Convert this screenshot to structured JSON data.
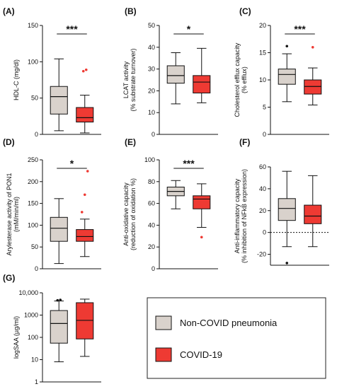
{
  "colors": {
    "non_covid": "#d9d2cc",
    "covid": "#ee3a33",
    "outlier_non_covid": "#111111",
    "outlier_covid": "#ee3a33"
  },
  "legend": {
    "items": [
      {
        "label": "Non-COVID pneumonia",
        "color": "#d9d2cc"
      },
      {
        "label": "COVID-19",
        "color": "#ee3a33"
      }
    ]
  },
  "chart_data": [
    {
      "type": "box",
      "letter": "(A)",
      "ylabel": [
        "HDL-C (mg/dl)"
      ],
      "ylim": [
        0,
        150
      ],
      "yticks": [
        0,
        50,
        100,
        150
      ],
      "significance": "***",
      "boxes": [
        {
          "group": "Non-COVID pneumonia",
          "min": 5,
          "q1": 28,
          "median": 52,
          "q3": 66,
          "max": 104,
          "outliers": []
        },
        {
          "group": "COVID-19",
          "min": 2,
          "q1": 17,
          "median": 23,
          "q3": 37,
          "max": 54,
          "outliers": [
            87,
            89
          ]
        }
      ]
    },
    {
      "type": "box",
      "letter": "(B)",
      "ylabel": [
        "LCAT activity",
        "(% substrate turnover)"
      ],
      "ylim": [
        0,
        50
      ],
      "yticks": [
        0,
        10,
        20,
        30,
        40,
        50
      ],
      "significance": "*",
      "boxes": [
        {
          "group": "Non-COVID pneumonia",
          "min": 14,
          "q1": 23.5,
          "median": 27,
          "q3": 31.5,
          "max": 37.5,
          "outliers": []
        },
        {
          "group": "COVID-19",
          "min": 14.5,
          "q1": 19,
          "median": 24,
          "q3": 27,
          "max": 39.5,
          "outliers": []
        }
      ]
    },
    {
      "type": "box",
      "letter": "(C)",
      "ylabel": [
        "Cholesterol efflux capacity",
        "(% efflux)"
      ],
      "ylim": [
        0,
        20
      ],
      "yticks": [
        0,
        5,
        10,
        15,
        20
      ],
      "significance": "***",
      "boxes": [
        {
          "group": "Non-COVID pneumonia",
          "min": 6,
          "q1": 9.2,
          "median": 11,
          "q3": 12,
          "max": 14.8,
          "outliers": [
            16.2
          ]
        },
        {
          "group": "COVID-19",
          "min": 5.4,
          "q1": 7.4,
          "median": 8.8,
          "q3": 10,
          "max": 12.2,
          "outliers": [
            16
          ]
        }
      ]
    },
    {
      "type": "box",
      "letter": "(D)",
      "ylabel": [
        "Arylesterase activity of PON1",
        "(mM/min/ml)"
      ],
      "ylim": [
        0,
        250
      ],
      "yticks": [
        0,
        50,
        100,
        150,
        200,
        250
      ],
      "significance": "*",
      "boxes": [
        {
          "group": "Non-COVID pneumonia",
          "min": 12,
          "q1": 63,
          "median": 93,
          "q3": 118,
          "max": 161,
          "outliers": []
        },
        {
          "group": "COVID-19",
          "min": 28,
          "q1": 63,
          "median": 74,
          "q3": 90,
          "max": 114,
          "outliers": [
            130,
            170,
            224
          ]
        }
      ]
    },
    {
      "type": "box",
      "letter": "(E)",
      "ylabel": [
        "Anti-oxidative capacity",
        "(reduction of oxidation %)"
      ],
      "ylim": [
        0,
        100
      ],
      "yticks": [
        0,
        20,
        40,
        60,
        80,
        100
      ],
      "significance": "***",
      "boxes": [
        {
          "group": "Non-COVID pneumonia",
          "min": 55,
          "q1": 67,
          "median": 71,
          "q3": 75,
          "max": 81,
          "outliers": []
        },
        {
          "group": "COVID-19",
          "min": 38,
          "q1": 55,
          "median": 64,
          "q3": 67,
          "max": 78,
          "outliers": [
            29
          ]
        }
      ]
    },
    {
      "type": "box",
      "letter": "(F)",
      "ylabel": [
        "Anti-inflammatory capacity",
        "(% inhibition of NFkB expression)"
      ],
      "ylim": [
        -30,
        60
      ],
      "yticks": [
        -20,
        0,
        20,
        40,
        60
      ],
      "zero_line": true,
      "significance": "",
      "boxes": [
        {
          "group": "Non-COVID pneumonia",
          "min": -13,
          "q1": 11,
          "median": 22,
          "q3": 31,
          "max": 56,
          "outliers": [
            -28
          ]
        },
        {
          "group": "COVID-19",
          "min": -13,
          "q1": 8,
          "median": 15,
          "q3": 25,
          "max": 52,
          "outliers": []
        }
      ]
    },
    {
      "type": "box",
      "letter": "(G)",
      "ylabel": [
        "logSAA (µg/ml)"
      ],
      "log_scale": true,
      "ylim": [
        1,
        10000
      ],
      "yticks": [
        1,
        10,
        100,
        1000,
        10000
      ],
      "ytick_labels": [
        "1",
        "10",
        "100",
        "1000",
        "10,000"
      ],
      "significance": "",
      "boxes": [
        {
          "group": "Non-COVID pneumonia",
          "min": 8,
          "q1": 55,
          "median": 420,
          "q3": 1600,
          "max": 4300,
          "outliers": [
            4600,
            4800
          ]
        },
        {
          "group": "COVID-19",
          "min": 14,
          "q1": 85,
          "median": 580,
          "q3": 3600,
          "max": 5200,
          "outliers": []
        }
      ]
    }
  ]
}
